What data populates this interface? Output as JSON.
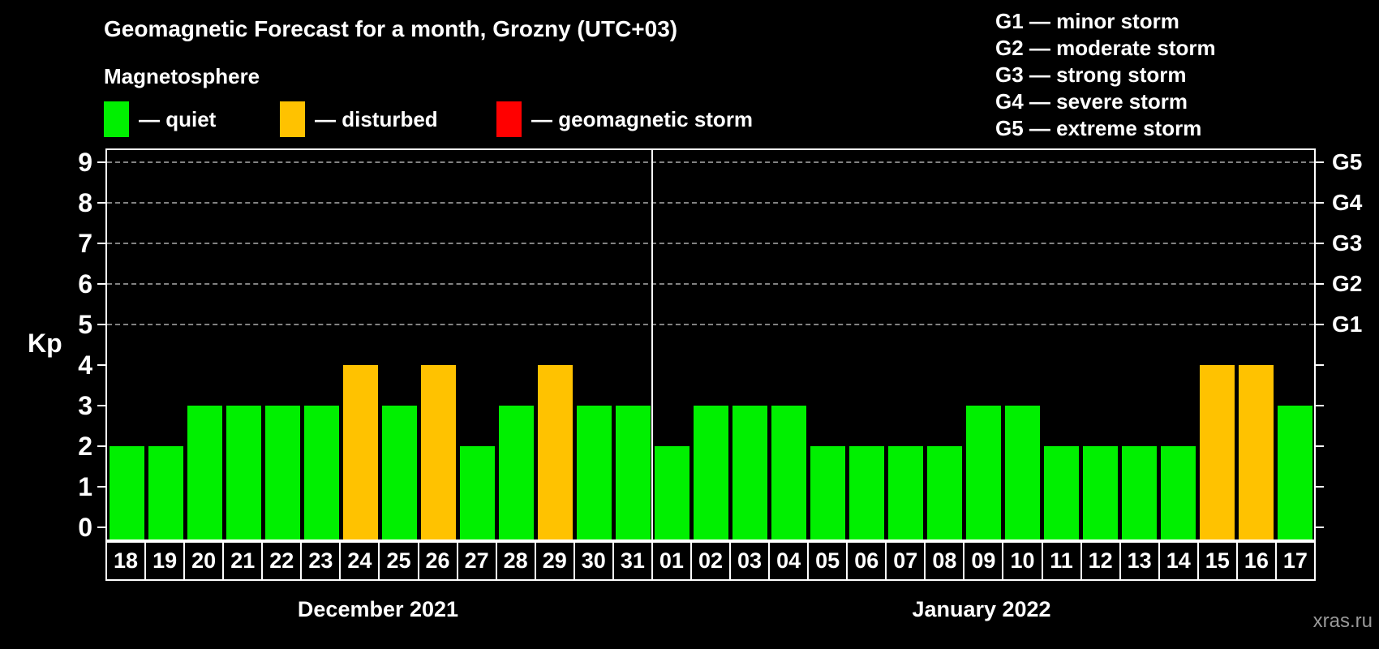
{
  "title": "Geomagnetic Forecast for a month, Grozny (UTC+03)",
  "subtitle": "Magnetosphere",
  "legend": {
    "items": [
      {
        "label": "— quiet",
        "status": "quiet",
        "color": "#00f000"
      },
      {
        "label": "— disturbed",
        "status": "disturbed",
        "color": "#ffc200"
      },
      {
        "label": "— geomagnetic storm",
        "status": "storm",
        "color": "#ff0000"
      }
    ]
  },
  "storm_scale_legend": {
    "lines": [
      "G1 — minor storm",
      "G2 — moderate storm",
      "G3 — strong storm",
      "G4 — severe storm",
      "G5 — extreme storm"
    ]
  },
  "watermark": "xras.ru",
  "chart_data": {
    "type": "bar",
    "title": "Geomagnetic Forecast for a month, Grozny (UTC+03)",
    "ylabel": "Kp",
    "ylim": [
      0,
      9.3
    ],
    "yticks": [
      0,
      1,
      2,
      3,
      4,
      5,
      6,
      7,
      8,
      9
    ],
    "gridlines_at": [
      5,
      6,
      7,
      8,
      9
    ],
    "grid": "dashed-horizontal-above-kp4",
    "legend_position": "top",
    "right_axis_labels": [
      {
        "kp": 5,
        "label": "G1"
      },
      {
        "kp": 6,
        "label": "G2"
      },
      {
        "kp": 7,
        "label": "G3"
      },
      {
        "kp": 8,
        "label": "G4"
      },
      {
        "kp": 9,
        "label": "G5"
      }
    ],
    "months": [
      {
        "label": "December 2021",
        "days": 14
      },
      {
        "label": "January 2022",
        "days": 17
      }
    ],
    "categories": [
      "18",
      "19",
      "20",
      "21",
      "22",
      "23",
      "24",
      "25",
      "26",
      "27",
      "28",
      "29",
      "30",
      "31",
      "01",
      "02",
      "03",
      "04",
      "05",
      "06",
      "07",
      "08",
      "09",
      "10",
      "11",
      "12",
      "13",
      "14",
      "15",
      "16",
      "17"
    ],
    "series": [
      {
        "name": "Kp forecast",
        "values": [
          2,
          2,
          3,
          3,
          3,
          3,
          4,
          3,
          4,
          2,
          3,
          4,
          3,
          3,
          2,
          3,
          3,
          3,
          2,
          2,
          2,
          2,
          3,
          3,
          2,
          2,
          2,
          2,
          4,
          4,
          3
        ]
      }
    ],
    "statuses": [
      "quiet",
      "quiet",
      "quiet",
      "quiet",
      "quiet",
      "quiet",
      "disturbed",
      "quiet",
      "disturbed",
      "quiet",
      "quiet",
      "disturbed",
      "quiet",
      "quiet",
      "quiet",
      "quiet",
      "quiet",
      "quiet",
      "quiet",
      "quiet",
      "quiet",
      "quiet",
      "quiet",
      "quiet",
      "quiet",
      "quiet",
      "quiet",
      "quiet",
      "disturbed",
      "disturbed",
      "quiet"
    ],
    "colors": {
      "quiet": "#00f000",
      "disturbed": "#ffc200",
      "storm": "#ff0000"
    }
  }
}
